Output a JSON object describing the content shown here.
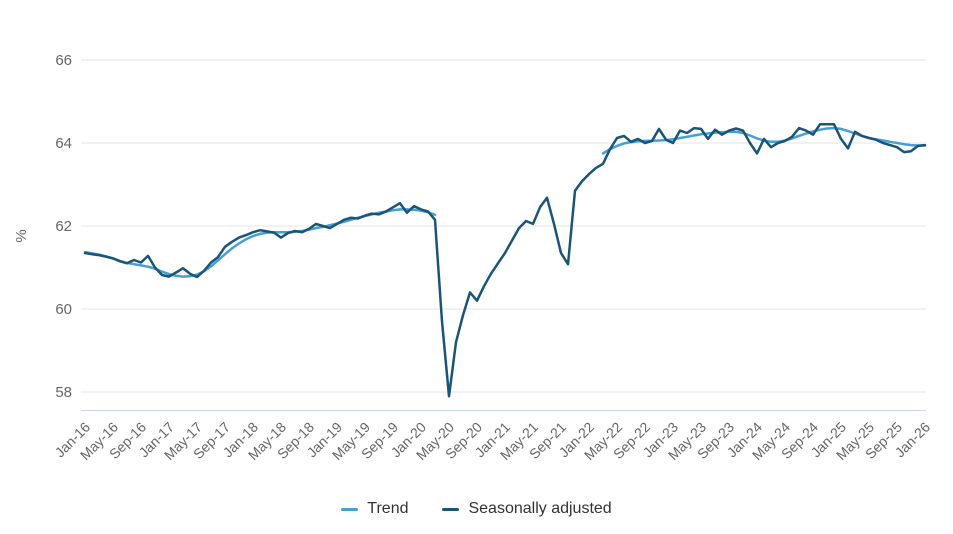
{
  "chart_data": {
    "type": "line",
    "title": "",
    "xlabel": "",
    "ylabel": "%",
    "ylim": [
      57.4,
      66.6
    ],
    "yticks": [
      58,
      60,
      62,
      64,
      66
    ],
    "x_tick_interval_months": 4,
    "x_tick_labels": [
      "Jan-16",
      "May-16",
      "Sep-16",
      "Jan-17",
      "May-17",
      "Sep-17",
      "Jan-18",
      "May-18",
      "Sep-18",
      "Jan-19",
      "May-19",
      "Sep-19",
      "Jan-20",
      "May-20",
      "Sep-20",
      "Jan-21",
      "May-21",
      "Sep-21",
      "Jan-22",
      "May-22",
      "Sep-22",
      "Jan-23",
      "May-23",
      "Sep-23",
      "Jan-24",
      "May-24",
      "Sep-24",
      "Jan-25",
      "May-25",
      "Sep-25",
      "Jan-26"
    ],
    "grid": "horizontal",
    "legend_position": "bottom-center",
    "colors": {
      "gridline": "#e6e6e6",
      "axis_line": "#ccd6eb",
      "tick_label": "#666666",
      "axis_title": "#666666",
      "legend_text": "#333333",
      "background": "#ffffff"
    },
    "series": [
      {
        "name": "Trend",
        "color": "#46a0d2",
        "note": "gap where trend series is suspended Apr-20 to Feb-22",
        "values": [
          61.37,
          61.34,
          61.31,
          61.27,
          61.22,
          61.16,
          61.11,
          61.08,
          61.05,
          61.02,
          60.97,
          60.9,
          60.84,
          60.8,
          60.78,
          60.79,
          60.83,
          60.91,
          61.03,
          61.17,
          61.32,
          61.46,
          61.58,
          61.68,
          61.76,
          61.81,
          61.84,
          61.85,
          61.85,
          61.85,
          61.86,
          61.88,
          61.91,
          61.95,
          61.98,
          62.02,
          62.06,
          62.1,
          62.15,
          62.2,
          62.24,
          62.28,
          62.32,
          62.35,
          62.38,
          62.4,
          62.4,
          62.39,
          62.37,
          62.33,
          62.27,
          null,
          null,
          null,
          null,
          null,
          null,
          null,
          null,
          null,
          null,
          null,
          null,
          null,
          null,
          null,
          null,
          null,
          null,
          null,
          null,
          null,
          null,
          null,
          63.75,
          63.85,
          63.93,
          63.99,
          64.02,
          64.04,
          64.05,
          64.05,
          64.06,
          64.07,
          64.09,
          64.12,
          64.15,
          64.18,
          64.21,
          64.23,
          64.25,
          64.26,
          64.27,
          64.27,
          64.24,
          64.18,
          64.11,
          64.06,
          64.03,
          64.03,
          64.06,
          64.11,
          64.17,
          64.23,
          64.28,
          64.32,
          64.35,
          64.36,
          64.34,
          64.29,
          64.23,
          64.17,
          64.12,
          64.09,
          64.06,
          64.03,
          64.0,
          63.97,
          63.95,
          63.94,
          63.94
        ]
      },
      {
        "name": "Seasonally adjusted",
        "color": "#1a5578",
        "values": [
          61.35,
          61.32,
          61.3,
          61.26,
          61.22,
          61.15,
          61.1,
          61.18,
          61.12,
          61.28,
          61.0,
          60.82,
          60.78,
          60.88,
          60.98,
          60.85,
          60.77,
          60.92,
          61.12,
          61.25,
          61.5,
          61.62,
          61.72,
          61.78,
          61.85,
          61.9,
          61.87,
          61.84,
          61.72,
          61.83,
          61.88,
          61.85,
          61.93,
          62.05,
          62.0,
          61.95,
          62.05,
          62.15,
          62.2,
          62.18,
          62.25,
          62.3,
          62.28,
          62.35,
          62.45,
          62.55,
          62.32,
          62.48,
          62.4,
          62.35,
          62.15,
          59.7,
          57.9,
          59.2,
          59.85,
          60.4,
          60.2,
          60.55,
          60.85,
          61.1,
          61.35,
          61.65,
          61.95,
          62.12,
          62.05,
          62.45,
          62.68,
          62.05,
          61.35,
          61.08,
          62.85,
          63.08,
          63.25,
          63.4,
          63.5,
          63.85,
          64.12,
          64.17,
          64.03,
          64.1,
          64.0,
          64.05,
          64.34,
          64.08,
          64.0,
          64.3,
          64.24,
          64.36,
          64.34,
          64.1,
          64.32,
          64.2,
          64.3,
          64.35,
          64.3,
          64.0,
          63.75,
          64.1,
          63.9,
          64.0,
          64.05,
          64.15,
          64.36,
          64.3,
          64.2,
          64.45,
          64.45,
          64.45,
          64.1,
          63.87,
          64.27,
          64.17,
          64.12,
          64.08,
          64.0,
          63.95,
          63.9,
          63.78,
          63.8,
          63.93,
          63.95
        ]
      }
    ]
  },
  "legend": {
    "items": [
      {
        "label": "Trend"
      },
      {
        "label": "Seasonally adjusted"
      }
    ]
  }
}
